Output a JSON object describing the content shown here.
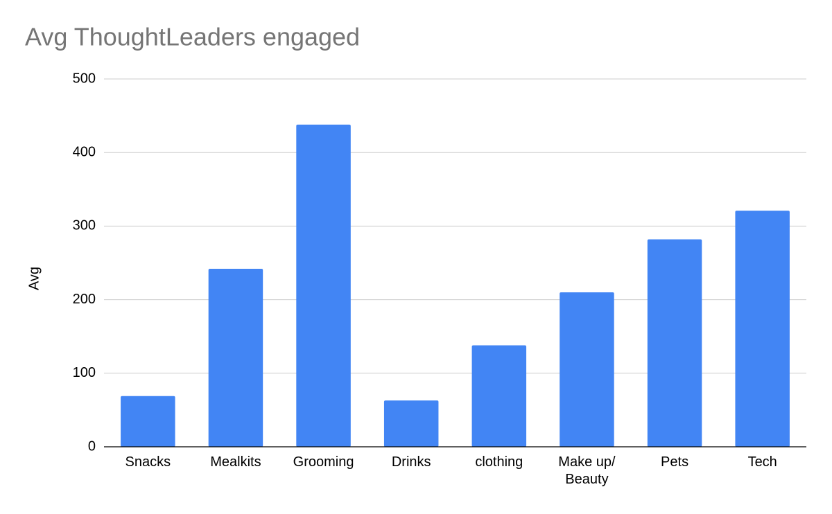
{
  "chart_data": {
    "type": "bar",
    "title": "Avg ThoughtLeaders engaged",
    "y_label": "Avg",
    "categories": [
      "Snacks",
      "Mealkits",
      "Grooming",
      "Drinks",
      "clothing",
      "Make up/ Beauty",
      "Pets",
      "Tech"
    ],
    "values": [
      69,
      242,
      438,
      63,
      138,
      210,
      282,
      321
    ],
    "color": "#4285f4",
    "ylim": [
      0,
      500
    ],
    "yticks": [
      0,
      100,
      200,
      300,
      400,
      500
    ],
    "grid": true
  }
}
